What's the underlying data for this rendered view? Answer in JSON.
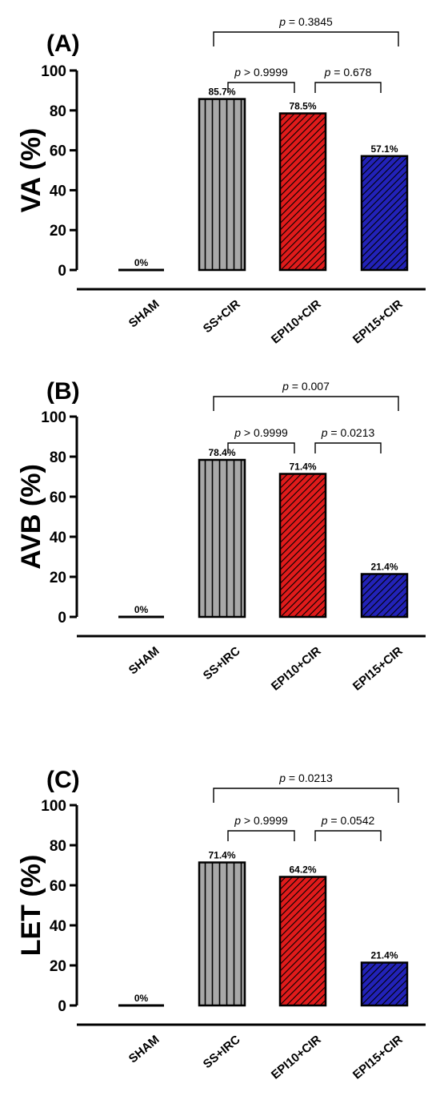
{
  "chart_data": [
    {
      "type": "bar",
      "panel": "(A)",
      "ylabel": "VA (%)",
      "ylim": [
        0,
        100
      ],
      "yticks": [
        0,
        20,
        40,
        60,
        80,
        100
      ],
      "categories": [
        "SHAM",
        "SS+CIR",
        "EPI10+CIR",
        "EPI15+CIR"
      ],
      "values": [
        0,
        85.7,
        78.5,
        57.1
      ],
      "data_labels": [
        "0%",
        "85.7%",
        "78.5%",
        "57.1%"
      ],
      "bar_colors": [
        "#ffffff",
        "#a8a8a8",
        "#e01b1b",
        "#2222b8"
      ],
      "bar_patterns": [
        "none",
        "vertical",
        "diagonal",
        "diagonal"
      ],
      "comparisons": [
        {
          "from": 1,
          "to": 2,
          "italic": "p",
          "text": " > 0.9999"
        },
        {
          "from": 2,
          "to": 3,
          "italic": "p",
          "text": " = 0.678"
        },
        {
          "from": 1,
          "to": 3,
          "italic": "p",
          "text": " = 0.3845"
        }
      ]
    },
    {
      "type": "bar",
      "panel": "(B)",
      "ylabel": "AVB (%)",
      "ylim": [
        0,
        100
      ],
      "yticks": [
        0,
        20,
        40,
        60,
        80,
        100
      ],
      "categories": [
        "SHAM",
        "SS+IRC",
        "EPI10+CIR",
        "EPI15+CIR"
      ],
      "values": [
        0,
        78.4,
        71.4,
        21.4
      ],
      "data_labels": [
        "0%",
        "78.4%",
        "71.4%",
        "21.4%"
      ],
      "bar_colors": [
        "#ffffff",
        "#a8a8a8",
        "#e01b1b",
        "#2222b8"
      ],
      "bar_patterns": [
        "none",
        "vertical",
        "diagonal",
        "diagonal"
      ],
      "comparisons": [
        {
          "from": 1,
          "to": 2,
          "italic": "p",
          "text": " > 0.9999"
        },
        {
          "from": 2,
          "to": 3,
          "italic": "p",
          "text": " = 0.0213"
        },
        {
          "from": 1,
          "to": 3,
          "italic": "p",
          "text": " = 0.007"
        }
      ]
    },
    {
      "type": "bar",
      "panel": "(C)",
      "ylabel": "LET (%)",
      "ylim": [
        0,
        100
      ],
      "yticks": [
        0,
        20,
        40,
        60,
        80,
        100
      ],
      "categories": [
        "SHAM",
        "SS+IRC",
        "EPI10+CIR",
        "EPI15+CIR"
      ],
      "values": [
        0,
        71.4,
        64.2,
        21.4
      ],
      "data_labels": [
        "0%",
        "71.4%",
        "64.2%",
        "21.4%"
      ],
      "bar_colors": [
        "#ffffff",
        "#a8a8a8",
        "#e01b1b",
        "#2222b8"
      ],
      "bar_patterns": [
        "none",
        "vertical",
        "diagonal",
        "diagonal"
      ],
      "comparisons": [
        {
          "from": 1,
          "to": 2,
          "italic": "p",
          "text": " > 0.9999"
        },
        {
          "from": 2,
          "to": 3,
          "italic": "p",
          "text": " = 0.0542"
        },
        {
          "from": 1,
          "to": 3,
          "italic": "p",
          "text": " = 0.0213"
        }
      ]
    }
  ]
}
